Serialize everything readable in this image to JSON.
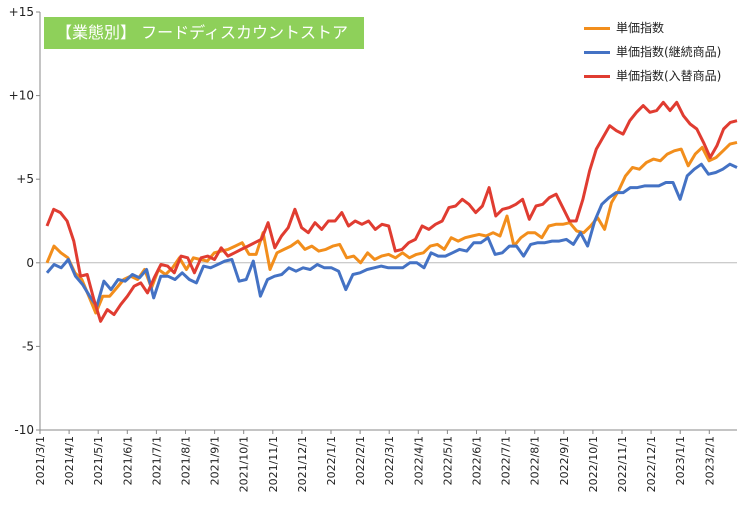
{
  "chart_data": {
    "type": "line",
    "title": "【業態別】 フードディスカウントストア",
    "xlabel": "",
    "ylabel": "",
    "ylim": [
      -10,
      15
    ],
    "y_ticks": [
      15,
      10,
      5,
      0,
      -5,
      -10
    ],
    "y_tick_labels": [
      "+15",
      "+10",
      "+5",
      "0",
      "-5",
      "-10"
    ],
    "x_tick_labels": [
      "2021/3/1",
      "2021/4/1",
      "2021/5/1",
      "2021/6/1",
      "2021/7/1",
      "2021/8/1",
      "2021/9/1",
      "2021/10/1",
      "2021/11/1",
      "2021/12/1",
      "2022/1/1",
      "2022/2/1",
      "2022/3/1",
      "2022/4/1",
      "2022/5/1",
      "2022/6/1",
      "2022/7/1",
      "2022/8/1",
      "2022/9/1",
      "2022/10/1",
      "2022/11/1",
      "2022/12/1",
      "2023/1/1",
      "2023/2/1"
    ],
    "grid": false,
    "legend_position": "top-right",
    "series": [
      {
        "name": "単価指数",
        "color": "#f28e1c",
        "values": [
          0.0,
          1.0,
          0.6,
          0.3,
          -0.6,
          -1.0,
          -2.0,
          -3.0,
          -2.0,
          -2.0,
          -1.5,
          -1.0,
          -0.8,
          -1.0,
          -0.4,
          -1.5,
          -0.4,
          -0.7,
          -0.3,
          0.3,
          -0.4,
          0.3,
          0.2,
          0.1,
          0.6,
          0.7,
          0.8,
          1.0,
          1.2,
          0.5,
          0.5,
          1.8,
          -0.4,
          0.6,
          0.8,
          1.0,
          1.3,
          0.8,
          1.0,
          0.7,
          0.8,
          1.0,
          1.1,
          0.3,
          0.4,
          0.0,
          0.6,
          0.2,
          0.4,
          0.5,
          0.3,
          0.6,
          0.3,
          0.5,
          0.6,
          1.0,
          1.1,
          0.8,
          1.5,
          1.3,
          1.5,
          1.6,
          1.7,
          1.6,
          1.8,
          1.6,
          2.8,
          1.0,
          1.5,
          1.8,
          1.8,
          1.5,
          2.2,
          2.3,
          2.3,
          2.4,
          1.9,
          1.8,
          2.2,
          2.7,
          2.0,
          3.6,
          4.3,
          5.2,
          5.7,
          5.6,
          6.0,
          6.2,
          6.1,
          6.5,
          6.7,
          6.8,
          5.8,
          6.5,
          6.9,
          6.1,
          6.3,
          6.7,
          7.1,
          7.2
        ]
      },
      {
        "name": "単価指数(継続商品)",
        "color": "#4472c4",
        "values": [
          -0.6,
          -0.1,
          -0.3,
          0.2,
          -0.8,
          -1.3,
          -2.0,
          -2.6,
          -1.1,
          -1.6,
          -1.0,
          -1.1,
          -0.7,
          -0.9,
          -0.4,
          -2.1,
          -0.8,
          -0.8,
          -1.0,
          -0.6,
          -1.0,
          -1.2,
          -0.2,
          -0.3,
          -0.1,
          0.1,
          0.2,
          -1.1,
          -1.0,
          0.1,
          -2.0,
          -1.0,
          -0.8,
          -0.7,
          -0.3,
          -0.5,
          -0.3,
          -0.4,
          -0.1,
          -0.3,
          -0.3,
          -0.5,
          -1.6,
          -0.7,
          -0.6,
          -0.4,
          -0.3,
          -0.2,
          -0.3,
          -0.3,
          -0.3,
          0.0,
          0.0,
          -0.3,
          0.6,
          0.4,
          0.4,
          0.6,
          0.8,
          0.7,
          1.2,
          1.2,
          1.5,
          0.5,
          0.6,
          1.0,
          1.0,
          0.4,
          1.1,
          1.2,
          1.2,
          1.3,
          1.3,
          1.4,
          1.1,
          1.8,
          1.0,
          2.5,
          3.5,
          3.9,
          4.2,
          4.2,
          4.5,
          4.5,
          4.6,
          4.6,
          4.6,
          4.8,
          4.8,
          3.8,
          5.2,
          5.6,
          5.9,
          5.3,
          5.4,
          5.6,
          5.9,
          5.7
        ]
      },
      {
        "name": "単価指数(入替商品)",
        "color": "#e03c31",
        "values": [
          2.2,
          3.2,
          3.0,
          2.5,
          1.3,
          -0.8,
          -0.7,
          -2.2,
          -3.5,
          -2.8,
          -3.1,
          -2.5,
          -2.0,
          -1.4,
          -1.2,
          -1.8,
          -0.9,
          -0.1,
          -0.2,
          -0.6,
          0.4,
          0.3,
          -0.6,
          0.3,
          0.4,
          0.2,
          0.9,
          0.4,
          0.6,
          0.8,
          1.0,
          1.2,
          1.4,
          2.4,
          0.9,
          1.6,
          2.1,
          3.2,
          2.1,
          1.8,
          2.4,
          2.0,
          2.5,
          2.5,
          3.0,
          2.2,
          2.5,
          2.3,
          2.5,
          2.0,
          2.3,
          2.2,
          0.7,
          0.8,
          1.2,
          1.4,
          2.2,
          2.0,
          2.3,
          2.5,
          3.3,
          3.4,
          3.8,
          3.5,
          3.0,
          3.4,
          4.5,
          2.8,
          3.2,
          3.3,
          3.5,
          3.8,
          2.6,
          3.4,
          3.5,
          3.9,
          4.1,
          3.3,
          2.5,
          2.5,
          3.8,
          5.5,
          6.8,
          7.5,
          8.2,
          7.9,
          7.7,
          8.5,
          9.0,
          9.4,
          9.0,
          9.1,
          9.6,
          9.1,
          9.6,
          8.8,
          8.3,
          8.0,
          7.2,
          6.3,
          7.0,
          8.0,
          8.4,
          8.5
        ]
      }
    ]
  }
}
